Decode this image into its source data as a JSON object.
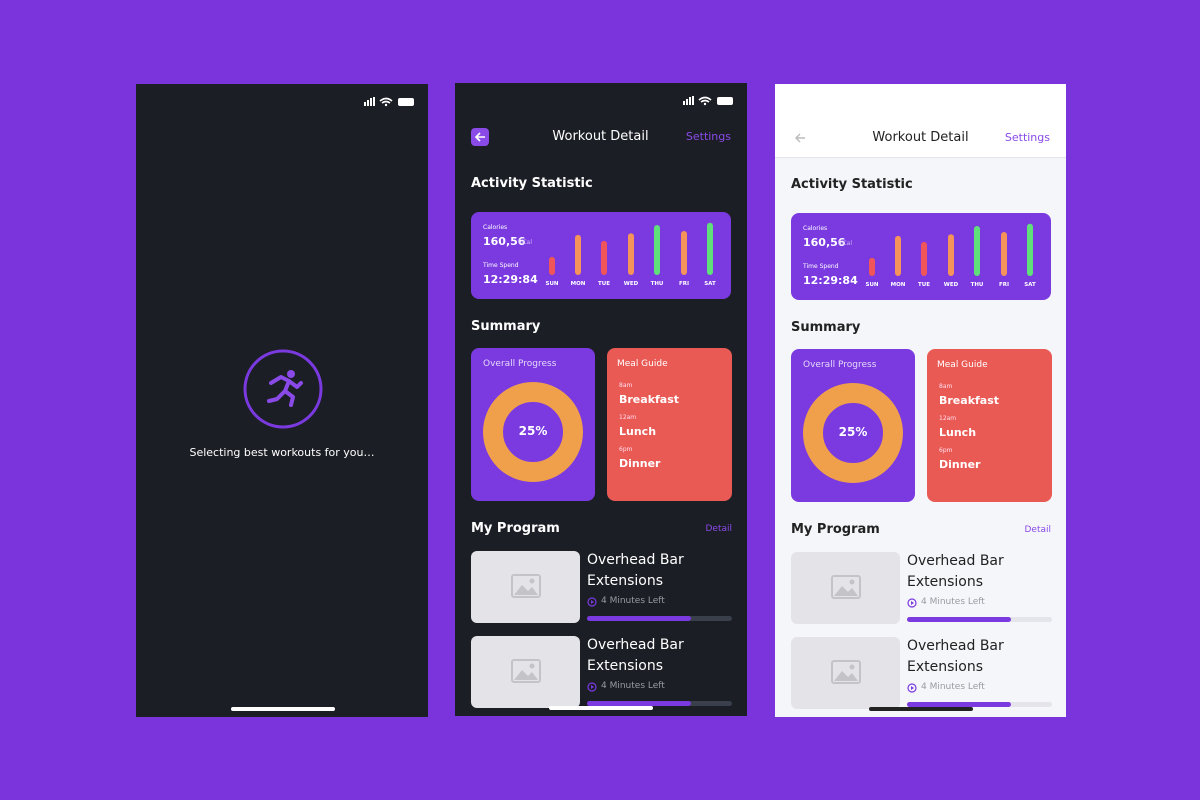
{
  "loading": {
    "message": "Selecting best workouts for you…"
  },
  "detail": {
    "header": {
      "title": "Workout Detail",
      "action": "Settings"
    },
    "activity": {
      "title": "Activity Statistic",
      "calories_label": "Calories",
      "calories": "160,56",
      "calories_unit": "kCal",
      "time_label": "Time Spend",
      "time": "12:29:84",
      "chart": {
        "type": "bar",
        "categories": [
          "SUN",
          "MON",
          "TUE",
          "WED",
          "THU",
          "FRI",
          "SAT"
        ],
        "values": [
          33,
          73,
          62,
          76,
          91,
          80,
          95
        ],
        "colors": [
          "#f0555a",
          "#f5935a",
          "#f0555a",
          "#f5935a",
          "#5fe07a",
          "#f5935a",
          "#5fe07a"
        ],
        "ylim": [
          0,
          100
        ]
      }
    },
    "summary": {
      "title": "Summary",
      "progress": {
        "title": "Overall Progress",
        "label": "25%"
      },
      "meal_guide": {
        "title": "Meal Guide",
        "meals": [
          {
            "time": "8am",
            "name": "Breakfast"
          },
          {
            "time": "12am",
            "name": "Lunch"
          },
          {
            "time": "6pm",
            "name": "Dinner"
          }
        ]
      }
    },
    "program": {
      "title": "My Program",
      "action": "Detail",
      "progress_range": [
        0,
        100
      ],
      "items": [
        {
          "title_lines": [
            "Overhead Bar",
            "Extensions"
          ],
          "time_left": "4 Minutes Left",
          "progress": 72
        },
        {
          "title_lines": [
            "Overhead Bar",
            "Extensions"
          ],
          "time_left": "4 Minutes Left",
          "progress": 72
        }
      ]
    }
  }
}
